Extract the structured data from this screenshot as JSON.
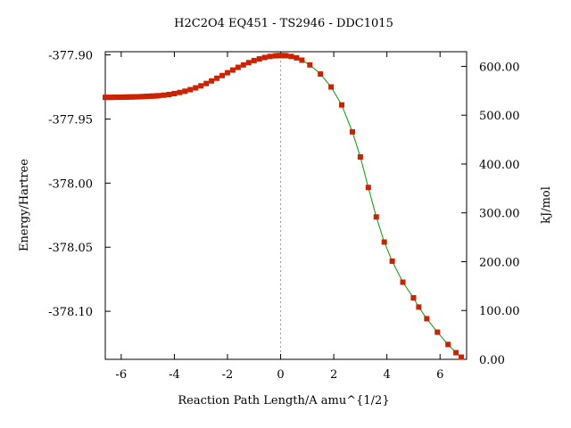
{
  "chart_data": {
    "type": "line",
    "title": "H2C2O4    EQ451 - TS2946 - DDC1015",
    "xlabel": "Reaction Path Length/A amu^{1/2}",
    "ylabel": "Energy/Hartree",
    "y2label": "kJ/mol",
    "xlim": [
      -6.6,
      7.0
    ],
    "ylim": [
      -378.1375,
      -377.8975
    ],
    "y2lim": [
      0.0,
      630.0
    ],
    "x_ticks": [
      -6,
      -4,
      -2,
      0,
      2,
      4,
      6
    ],
    "x_tick_labels": [
      "-6",
      "-4",
      "-2",
      "0",
      "2",
      "4",
      "6"
    ],
    "y_ticks": [
      -377.9,
      -377.95,
      -378.0,
      -378.05,
      -378.1
    ],
    "y_tick_labels": [
      "-377.90",
      "-377.95",
      "-378.00",
      "-378.05",
      "-378.10"
    ],
    "y2_ticks": [
      600,
      500,
      400,
      300,
      200,
      100,
      0
    ],
    "y2_tick_labels": [
      "600.00",
      "500.00",
      "400.00",
      "300.00",
      "200.00",
      "100.00",
      "0.00"
    ],
    "ts_x": 0,
    "colors": {
      "line": "#00a000",
      "marker": "#cc2200",
      "ts_line": "#999999"
    },
    "series": [
      {
        "x": [
          -6.6,
          -6.5,
          -6.4,
          -6.3,
          -6.2,
          -6.1,
          -6.0,
          -5.9,
          -5.8,
          -5.7,
          -5.6,
          -5.5,
          -5.4,
          -5.3,
          -5.2,
          -5.1,
          -5.0,
          -4.9,
          -4.8,
          -4.7,
          -4.6,
          -4.4,
          -4.2,
          -4.0,
          -3.8,
          -3.6,
          -3.4,
          -3.2,
          -3.0,
          -2.8,
          -2.6,
          -2.4,
          -2.2,
          -2.0,
          -1.8,
          -1.6,
          -1.4,
          -1.2,
          -1.0,
          -0.8,
          -0.6,
          -0.4,
          -0.2,
          -0.1,
          0.0,
          0.1,
          0.2,
          0.4,
          0.6,
          0.8,
          1.1,
          1.5,
          1.9,
          2.3,
          2.7,
          3.0,
          3.3,
          3.6,
          3.9,
          4.2,
          4.6,
          5.0,
          5.2,
          5.5,
          5.9,
          6.3,
          6.6,
          6.8
        ],
        "y": [
          -377.9331,
          -377.9331,
          -377.9331,
          -377.9331,
          -377.933,
          -377.933,
          -377.933,
          -377.9329,
          -377.9329,
          -377.9328,
          -377.9328,
          -377.9327,
          -377.9327,
          -377.9326,
          -377.9325,
          -377.9324,
          -377.9323,
          -377.9322,
          -377.9321,
          -377.932,
          -377.9318,
          -377.9314,
          -377.9309,
          -377.9302,
          -377.9293,
          -377.9283,
          -377.9271,
          -377.9257,
          -377.9241,
          -377.9223,
          -377.9203,
          -377.9182,
          -377.9161,
          -377.9139,
          -377.9118,
          -377.9097,
          -377.9078,
          -377.906,
          -377.9044,
          -377.9031,
          -377.902,
          -377.9012,
          -377.9007,
          -377.9005,
          -377.9005,
          -377.9005,
          -377.9006,
          -377.9012,
          -377.9023,
          -377.9041,
          -377.9078,
          -377.9149,
          -377.925,
          -377.939,
          -377.96,
          -377.9796,
          -378.0034,
          -378.0264,
          -378.046,
          -378.0609,
          -378.0773,
          -378.0895,
          -378.0967,
          -378.1058,
          -378.1163,
          -378.1259,
          -378.1323,
          -378.1358
        ]
      }
    ]
  }
}
